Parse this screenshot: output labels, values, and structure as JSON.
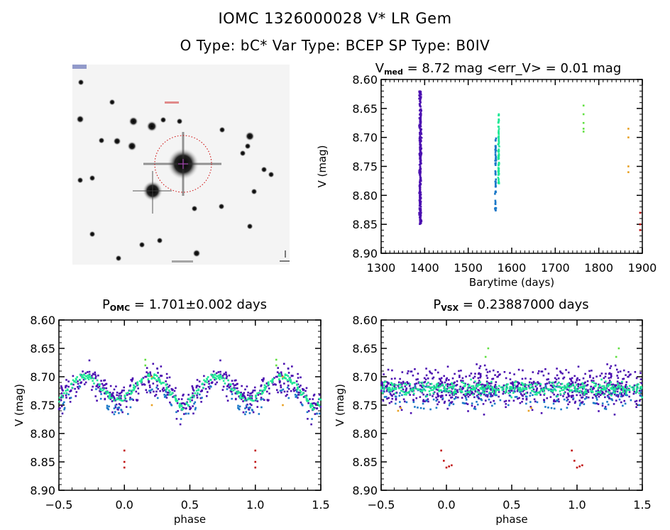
{
  "header": {
    "title": "IOMC 1326000028    V* LR Gem",
    "subtitle": "O Type: bC*   Var Type: BCEP   SP Type: B0IV"
  },
  "finder_chart": {
    "description": "Grayscale star field image with red dotted circle around target star",
    "circle_color": "#cc0000"
  },
  "colors": {
    "purple": "#4b0fb0",
    "blue": "#1a78c8",
    "green": "#1ee896",
    "lime": "#60e040",
    "orange": "#e8a020",
    "red": "#c01010"
  },
  "chart_data": [
    {
      "type": "scatter",
      "id": "lightcurve",
      "title_main": "V",
      "title_sub": "med",
      "title_rest": " = 8.72 mag <err_V> = 0.01 mag",
      "xlabel": "Barytime (days)",
      "ylabel": "V (mag)",
      "xlim": [
        1300,
        1900
      ],
      "ylim": [
        8.9,
        8.6
      ],
      "xticks": [
        "1300",
        "1400",
        "1500",
        "1600",
        "1700",
        "1800",
        "1900"
      ],
      "yticks": [
        "8.60",
        "8.65",
        "8.70",
        "8.75",
        "8.80",
        "8.85",
        "8.90"
      ],
      "series": [
        {
          "name": "segment-1",
          "color": "purple",
          "x_center": 1390,
          "x_spread": 4,
          "y_range": [
            8.62,
            8.85
          ],
          "n": 300
        },
        {
          "name": "segment-2",
          "color": "blue",
          "x_center": 1563,
          "x_spread": 2,
          "y_range": [
            8.7,
            8.83
          ],
          "n": 60
        },
        {
          "name": "segment-3",
          "color": "green",
          "x_center": 1570,
          "x_spread": 2,
          "y_range": [
            8.66,
            8.78
          ],
          "n": 80
        },
        {
          "name": "segment-4",
          "color": "lime",
          "points": [
            [
              1765,
              8.645
            ],
            [
              1765,
              8.66
            ],
            [
              1765,
              8.675
            ],
            [
              1765,
              8.685
            ],
            [
              1765,
              8.69
            ]
          ]
        },
        {
          "name": "segment-5",
          "color": "orange",
          "points": [
            [
              1868,
              8.685
            ],
            [
              1868,
              8.7
            ],
            [
              1868,
              8.75
            ],
            [
              1868,
              8.76
            ]
          ]
        },
        {
          "name": "segment-6",
          "color": "red",
          "points": [
            [
              1895,
              8.83
            ],
            [
              1895,
              8.85
            ],
            [
              1895,
              8.86
            ]
          ]
        }
      ]
    },
    {
      "type": "scatter",
      "id": "phase-omc",
      "title_main": "P",
      "title_sub": "OMC",
      "title_rest": " = 1.701±0.002 days",
      "xlabel": "phase",
      "ylabel": "V (mag)",
      "xlim": [
        -0.5,
        1.5
      ],
      "ylim": [
        8.9,
        8.6
      ],
      "xticks": [
        "-0.5",
        "0.0",
        "0.5",
        "1.0",
        "1.5"
      ],
      "yticks": [
        "8.60",
        "8.65",
        "8.70",
        "8.75",
        "8.80",
        "8.85",
        "8.90"
      ],
      "model": "folded light curve: minima near phase 0.0 and 0.45, maxima near phase 0.2 and 0.7; mean 8.72, amplitude ~0.05 mag",
      "period_days": 1.701
    },
    {
      "type": "scatter",
      "id": "phase-vsx",
      "title_main": "P",
      "title_sub": "VSX",
      "title_rest": " = 0.23887000 days",
      "xlabel": "phase",
      "ylabel": "V (mag)",
      "xlim": [
        -0.5,
        1.5
      ],
      "ylim": [
        8.9,
        8.6
      ],
      "xticks": [
        "-0.5",
        "0.0",
        "0.5",
        "1.0",
        "1.5"
      ],
      "yticks": [
        "8.60",
        "8.65",
        "8.70",
        "8.75",
        "8.80",
        "8.85",
        "8.90"
      ],
      "model": "broad scatter band centered ~8.72 with no clear coherent variation",
      "period_days": 0.23887
    }
  ]
}
